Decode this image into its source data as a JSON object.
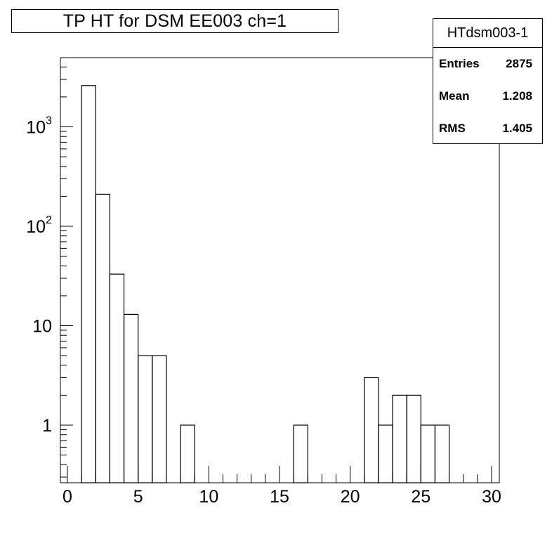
{
  "chart_data": {
    "type": "bar",
    "title": "TP HT for DSM EE003 ch=1",
    "xlabel": "",
    "ylabel": "",
    "y_scale": "log",
    "xlim": [
      0,
      30
    ],
    "ylim": [
      0.25,
      5000
    ],
    "grid": false,
    "bin_width": 1,
    "x_ticks": [
      "0",
      "5",
      "10",
      "15",
      "20",
      "25",
      "30"
    ],
    "y_ticks": [
      {
        "base": "1",
        "exp": "",
        "value": 1
      },
      {
        "base": "10",
        "exp": "",
        "value": 10
      },
      {
        "base": "10",
        "exp": "2",
        "value": 100
      },
      {
        "base": "10",
        "exp": "3",
        "value": 1000
      }
    ],
    "bins_x": [
      0,
      1,
      2,
      3,
      4,
      5,
      6,
      7,
      8,
      9,
      10,
      11,
      12,
      13,
      14,
      15,
      16,
      17,
      18,
      19,
      20,
      21,
      22,
      23,
      24,
      25,
      26,
      27,
      28,
      29
    ],
    "values": [
      0,
      2600,
      210,
      33,
      13,
      5,
      5,
      0,
      1,
      0,
      0,
      0,
      0,
      0,
      0,
      0,
      1,
      0,
      0,
      0,
      0,
      3,
      1,
      2,
      2,
      1,
      1,
      0,
      0,
      0
    ],
    "line_color": "#000000"
  },
  "stats": {
    "name": "HTdsm003-1",
    "rows": [
      {
        "key": "Entries",
        "value": "2875"
      },
      {
        "key": "Mean",
        "value": "1.208"
      },
      {
        "key": "RMS",
        "value": "1.405"
      }
    ]
  }
}
